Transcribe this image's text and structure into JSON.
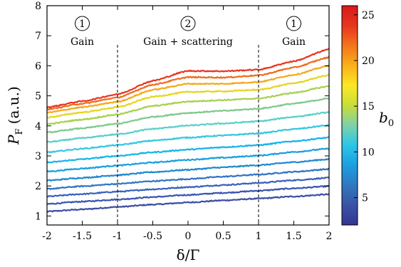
{
  "chart_data": {
    "type": "line",
    "xlabel": "δ/Γ",
    "ylabel": "P",
    "ylabel_sub": "F",
    "ylabel_units": "(a.u.)",
    "xlim": [
      -2,
      2
    ],
    "ylim": [
      0.7,
      8
    ],
    "xticks": [
      -2,
      -1.5,
      -1,
      -0.5,
      0,
      0.5,
      1,
      1.5,
      2
    ],
    "xtick_labels": [
      "-2",
      "-1.5",
      "-1",
      "-0.5",
      "0",
      "0.5",
      "1",
      "1.5",
      "2"
    ],
    "yticks": [
      1,
      2,
      3,
      4,
      5,
      6,
      7,
      8
    ],
    "ytick_labels": [
      "1",
      "2",
      "3",
      "4",
      "5",
      "6",
      "7",
      "8"
    ],
    "vlines": [
      -1,
      1
    ],
    "regions": [
      {
        "number": "1",
        "label": "Gain",
        "x": -1.5
      },
      {
        "number": "2",
        "label": "Gain + scattering",
        "x": 0
      },
      {
        "number": "1",
        "label": "Gain",
        "x": 1.5
      }
    ],
    "x": [
      -2,
      -1.5,
      -1,
      -0.5,
      0,
      0.5,
      1,
      1.5,
      2
    ],
    "series": [
      {
        "b0": 2.5,
        "color": "#3b4ea3",
        "values": [
          1.15,
          1.22,
          1.3,
          1.38,
          1.45,
          1.52,
          1.58,
          1.65,
          1.72
        ]
      },
      {
        "b0": 4.0,
        "color": "#3a55b0",
        "values": [
          1.4,
          1.48,
          1.55,
          1.63,
          1.7,
          1.77,
          1.84,
          1.92,
          1.99
        ]
      },
      {
        "b0": 5.5,
        "color": "#3860bd",
        "values": [
          1.65,
          1.73,
          1.81,
          1.89,
          1.96,
          2.03,
          2.1,
          2.19,
          2.27
        ]
      },
      {
        "b0": 7.0,
        "color": "#2f74c4",
        "values": [
          1.9,
          1.99,
          2.07,
          2.16,
          2.23,
          2.31,
          2.38,
          2.47,
          2.56
        ]
      },
      {
        "b0": 8.5,
        "color": "#2088cf",
        "values": [
          2.18,
          2.27,
          2.36,
          2.46,
          2.54,
          2.62,
          2.69,
          2.79,
          2.89
        ]
      },
      {
        "b0": 10.0,
        "color": "#1a9fe0",
        "values": [
          2.48,
          2.58,
          2.68,
          2.78,
          2.87,
          2.94,
          3.01,
          3.13,
          3.24
        ]
      },
      {
        "b0": 11.5,
        "color": "#14b4ec",
        "values": [
          2.78,
          2.89,
          3.0,
          3.12,
          3.21,
          3.29,
          3.36,
          3.49,
          3.61
        ]
      },
      {
        "b0": 13.0,
        "color": "#33c8e0",
        "values": [
          3.12,
          3.24,
          3.36,
          3.51,
          3.61,
          3.68,
          3.75,
          3.89,
          4.02
        ]
      },
      {
        "b0": 14.5,
        "color": "#58d0c8",
        "values": [
          3.46,
          3.59,
          3.72,
          3.9,
          4.01,
          4.08,
          4.15,
          4.3,
          4.45
        ]
      },
      {
        "b0": 16.0,
        "color": "#7dc98a",
        "values": [
          3.78,
          3.92,
          4.07,
          4.3,
          4.43,
          4.5,
          4.57,
          4.74,
          4.91
        ]
      },
      {
        "b0": 17.5,
        "color": "#a7d04c",
        "values": [
          4.06,
          4.21,
          4.38,
          4.66,
          4.81,
          4.86,
          4.91,
          5.1,
          5.32
        ]
      },
      {
        "b0": 19.0,
        "color": "#e6d520",
        "values": [
          4.28,
          4.45,
          4.62,
          4.97,
          5.13,
          5.15,
          5.2,
          5.42,
          5.69
        ]
      },
      {
        "b0": 20.5,
        "color": "#f5a81c",
        "values": [
          4.44,
          4.62,
          4.8,
          5.2,
          5.4,
          5.4,
          5.46,
          5.7,
          6.0
        ]
      },
      {
        "b0": 22.0,
        "color": "#ef6b1d",
        "values": [
          4.55,
          4.74,
          4.94,
          5.37,
          5.62,
          5.61,
          5.68,
          5.94,
          6.28
        ]
      },
      {
        "b0": 23.5,
        "color": "#e8351f",
        "values": [
          4.62,
          4.82,
          5.05,
          5.5,
          5.83,
          5.82,
          5.87,
          6.15,
          6.55
        ]
      }
    ],
    "colorbar": {
      "label": "b",
      "label_sub": "0",
      "range": [
        2,
        26
      ],
      "ticks": [
        5,
        10,
        15,
        20,
        25
      ],
      "tick_labels": [
        "5",
        "10",
        "15",
        "20",
        "25"
      ],
      "colors": [
        "#313695",
        "#3a53a4",
        "#2f79c0",
        "#1e9ee0",
        "#2bc6e8",
        "#7fd1a8",
        "#c8dd3a",
        "#fde724",
        "#fbb01a",
        "#f3741d",
        "#e8351f",
        "#d7191c"
      ]
    }
  }
}
